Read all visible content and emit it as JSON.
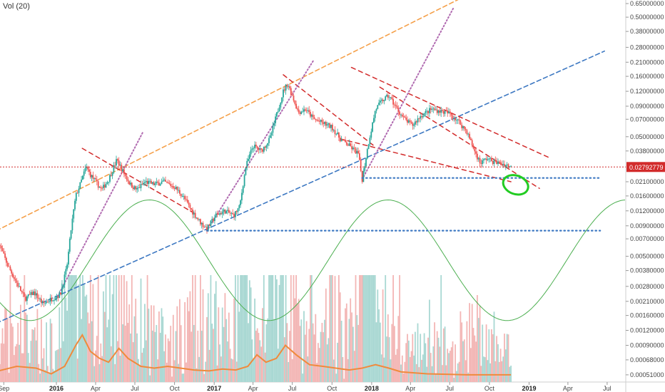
{
  "indicator_label": "Vol (20)",
  "colors": {
    "up": "#26a69a",
    "down": "#ef5350",
    "orange": "#f5a04a",
    "volume_ma": "#f08a3c",
    "blue_dashed": "#3d78c2",
    "red_dashed": "#d22b2b",
    "purple_dotted": "#b06ab0",
    "sine": "#4caf50",
    "blue_dotted": "#3d78c2",
    "price_line": "#d22b2b",
    "price_tag_bg": "#d22b2b",
    "circle": "#22cc22"
  },
  "chart_data": {
    "type": "candlestick",
    "title": "",
    "y_scale": "log",
    "y_ticks": [
      "0.65000000",
      "0.50000000",
      "0.38000000",
      "0.28000000",
      "0.21000000",
      "0.16000000",
      "0.12000000",
      "0.09000000",
      "0.07000000",
      "0.05000000",
      "0.03800000",
      "0.02792779",
      "0.02100000",
      "0.01600000",
      "0.01200000",
      "0.00900000",
      "0.00700000",
      "0.00500000",
      "0.00380000",
      "0.00280000",
      "0.00210000",
      "0.00160000",
      "0.00120000",
      "0.00090000",
      "0.00068000",
      "0.00051000"
    ],
    "current_price": "0.02792779",
    "x_ticks": [
      {
        "label": "Sep",
        "date": "2015-09-01",
        "bold": false
      },
      {
        "label": "2016",
        "date": "2016-01-01",
        "bold": true
      },
      {
        "label": "Apr",
        "date": "2016-04-01",
        "bold": false
      },
      {
        "label": "Jul",
        "date": "2016-07-01",
        "bold": false
      },
      {
        "label": "Oct",
        "date": "2016-10-01",
        "bold": false
      },
      {
        "label": "2017",
        "date": "2017-01-01",
        "bold": true
      },
      {
        "label": "Apr",
        "date": "2017-04-01",
        "bold": false
      },
      {
        "label": "Jul",
        "date": "2017-07-01",
        "bold": false
      },
      {
        "label": "Oct",
        "date": "2017-10-01",
        "bold": false
      },
      {
        "label": "2018",
        "date": "2018-01-01",
        "bold": true
      },
      {
        "label": "Apr",
        "date": "2018-04-01",
        "bold": false
      },
      {
        "label": "Jul",
        "date": "2018-07-01",
        "bold": false
      },
      {
        "label": "Oct",
        "date": "2018-10-01",
        "bold": false
      },
      {
        "label": "2019",
        "date": "2019-01-01",
        "bold": true
      },
      {
        "label": "Apr",
        "date": "2019-04-01",
        "bold": false
      },
      {
        "label": "Jul",
        "date": "2019-07-01",
        "bold": false
      }
    ],
    "price_path": [
      [
        "2015-08-20",
        0.0065
      ],
      [
        "2015-09-10",
        0.0042
      ],
      [
        "2015-10-01",
        0.003
      ],
      [
        "2015-10-20",
        0.0022
      ],
      [
        "2015-11-10",
        0.0025
      ],
      [
        "2015-12-01",
        0.002
      ],
      [
        "2015-12-20",
        0.0022
      ],
      [
        "2016-01-10",
        0.0024
      ],
      [
        "2016-01-25",
        0.004
      ],
      [
        "2016-02-05",
        0.009
      ],
      [
        "2016-02-15",
        0.016
      ],
      [
        "2016-02-25",
        0.02
      ],
      [
        "2016-03-10",
        0.028
      ],
      [
        "2016-03-20",
        0.024
      ],
      [
        "2016-04-01",
        0.021
      ],
      [
        "2016-04-15",
        0.018
      ],
      [
        "2016-05-01",
        0.022
      ],
      [
        "2016-05-20",
        0.032
      ],
      [
        "2016-06-05",
        0.025
      ],
      [
        "2016-06-20",
        0.02
      ],
      [
        "2016-07-05",
        0.018
      ],
      [
        "2016-07-25",
        0.021
      ],
      [
        "2016-08-15",
        0.02
      ],
      [
        "2016-09-05",
        0.021
      ],
      [
        "2016-10-01",
        0.019
      ],
      [
        "2016-10-20",
        0.016
      ],
      [
        "2016-11-10",
        0.012
      ],
      [
        "2016-12-01",
        0.0095
      ],
      [
        "2016-12-15",
        0.0085
      ],
      [
        "2017-01-05",
        0.011
      ],
      [
        "2017-01-25",
        0.012
      ],
      [
        "2017-02-15",
        0.011
      ],
      [
        "2017-03-01",
        0.013
      ],
      [
        "2017-03-15",
        0.028
      ],
      [
        "2017-04-01",
        0.042
      ],
      [
        "2017-04-20",
        0.038
      ],
      [
        "2017-05-10",
        0.048
      ],
      [
        "2017-05-25",
        0.075
      ],
      [
        "2017-06-10",
        0.12
      ],
      [
        "2017-06-20",
        0.14
      ],
      [
        "2017-07-01",
        0.11
      ],
      [
        "2017-07-15",
        0.08
      ],
      [
        "2017-08-01",
        0.085
      ],
      [
        "2017-08-20",
        0.07
      ],
      [
        "2017-09-10",
        0.065
      ],
      [
        "2017-10-01",
        0.06
      ],
      [
        "2017-10-20",
        0.048
      ],
      [
        "2017-11-10",
        0.042
      ],
      [
        "2017-12-01",
        0.036
      ],
      [
        "2017-12-10",
        0.022
      ],
      [
        "2017-12-25",
        0.045
      ],
      [
        "2018-01-10",
        0.085
      ],
      [
        "2018-01-25",
        0.1
      ],
      [
        "2018-02-10",
        0.11
      ],
      [
        "2018-02-25",
        0.09
      ],
      [
        "2018-03-15",
        0.072
      ],
      [
        "2018-04-05",
        0.062
      ],
      [
        "2018-04-25",
        0.075
      ],
      [
        "2018-05-20",
        0.085
      ],
      [
        "2018-06-10",
        0.082
      ],
      [
        "2018-07-01",
        0.078
      ],
      [
        "2018-07-20",
        0.068
      ],
      [
        "2018-08-10",
        0.055
      ],
      [
        "2018-08-25",
        0.04
      ],
      [
        "2018-09-10",
        0.03
      ],
      [
        "2018-09-25",
        0.033
      ],
      [
        "2018-10-10",
        0.031
      ],
      [
        "2018-10-25",
        0.03
      ],
      [
        "2018-11-10",
        0.029
      ],
      [
        "2018-11-20",
        0.0279
      ]
    ],
    "volume_ma_path": [
      [
        "2015-08-20",
        0.00055
      ],
      [
        "2015-10-01",
        0.0006
      ],
      [
        "2015-11-15",
        0.00058
      ],
      [
        "2015-12-20",
        0.00052
      ],
      [
        "2016-01-20",
        0.0006
      ],
      [
        "2016-02-15",
        0.0009
      ],
      [
        "2016-03-01",
        0.0011
      ],
      [
        "2016-03-20",
        0.0008
      ],
      [
        "2016-04-10",
        0.0007
      ],
      [
        "2016-05-01",
        0.00065
      ],
      [
        "2016-05-25",
        0.00085
      ],
      [
        "2016-06-15",
        0.0007
      ],
      [
        "2016-07-15",
        0.0006
      ],
      [
        "2016-08-15",
        0.00058
      ],
      [
        "2016-09-15",
        0.0006
      ],
      [
        "2016-10-15",
        0.00058
      ],
      [
        "2016-11-15",
        0.00056
      ],
      [
        "2016-12-20",
        0.00055
      ],
      [
        "2017-01-20",
        0.00057
      ],
      [
        "2017-02-20",
        0.00056
      ],
      [
        "2017-03-20",
        0.0006
      ],
      [
        "2017-04-10",
        0.00075
      ],
      [
        "2017-05-01",
        0.00065
      ],
      [
        "2017-05-25",
        0.0007
      ],
      [
        "2017-06-15",
        0.0009
      ],
      [
        "2017-07-10",
        0.00075
      ],
      [
        "2017-08-10",
        0.00062
      ],
      [
        "2017-09-10",
        0.0006
      ],
      [
        "2017-10-10",
        0.00058
      ],
      [
        "2017-11-10",
        0.00056
      ],
      [
        "2017-12-10",
        0.00058
      ],
      [
        "2018-01-10",
        0.00062
      ],
      [
        "2018-02-10",
        0.00058
      ],
      [
        "2018-03-10",
        0.00054
      ],
      [
        "2018-05-10",
        0.00052
      ],
      [
        "2018-08-10",
        0.00051
      ],
      [
        "2018-11-20",
        0.00051
      ]
    ],
    "trend_lines": [
      {
        "style": "orange-dashed",
        "from": [
          "2015-08-15",
          0.0082
        ],
        "to": [
          "2018-07-20",
          0.7
        ]
      },
      {
        "style": "blue-dashed",
        "from": [
          "2015-08-15",
          0.00138
        ],
        "to": [
          "2019-06-25",
          0.26
        ]
      },
      {
        "style": "red-dashed",
        "from": [
          "2016-03-01",
          0.04
        ],
        "to": [
          "2016-11-15",
          0.0115
        ]
      },
      {
        "style": "red-dashed",
        "from": [
          "2017-06-10",
          0.165
        ],
        "to": [
          "2018-01-10",
          0.041
        ]
      },
      {
        "style": "red-dashed",
        "from": [
          "2017-10-20",
          0.048
        ],
        "to": [
          "2018-11-20",
          0.021
        ]
      },
      {
        "style": "red-dashed",
        "from": [
          "2017-11-15",
          0.19
        ],
        "to": [
          "2019-02-20",
          0.033
        ]
      },
      {
        "style": "red-dashed",
        "from": [
          "2018-01-20",
          0.13
        ],
        "to": [
          "2019-01-25",
          0.0185
        ]
      },
      {
        "style": "purple-dotted",
        "from": [
          "2016-01-01",
          0.0022
        ],
        "to": [
          "2016-07-20",
          0.055
        ]
      },
      {
        "style": "purple-dotted",
        "from": [
          "2016-12-15",
          0.0082
        ],
        "to": [
          "2017-08-20",
          0.22
        ]
      },
      {
        "style": "purple-dotted",
        "from": [
          "2017-12-10",
          0.022
        ],
        "to": [
          "2018-07-10",
          0.6
        ]
      }
    ],
    "support_lines": [
      {
        "y": 0.0226,
        "from": "2017-12-10",
        "to": "2019-06-15"
      },
      {
        "y": 0.0082,
        "from": "2016-12-15",
        "to": "2019-06-15"
      }
    ],
    "cycle_sine": {
      "high": 0.0148,
      "low": 0.00145,
      "first_low": "2015-11-01",
      "period_days": 553
    }
  }
}
